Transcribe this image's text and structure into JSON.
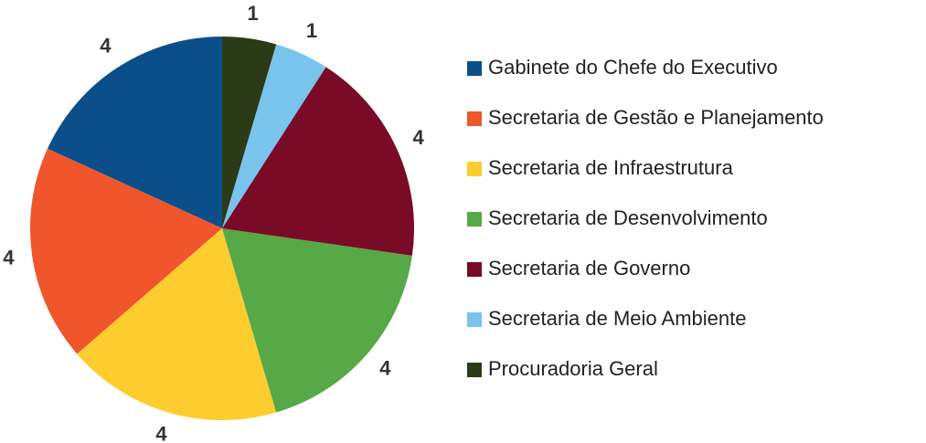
{
  "chart_data": {
    "type": "pie",
    "categories": [
      "Gabinete do Chefe do Executivo",
      "Secretaria de Gestão e Planejamento",
      "Secretaria de Infraestrutura",
      "Secretaria de Desenvolvimento",
      "Secretaria de Governo",
      "Secretaria de Meio Ambiente",
      "Procuradoria Geral"
    ],
    "values": [
      4,
      4,
      4,
      4,
      4,
      1,
      1
    ],
    "colors": [
      "#0b4f8a",
      "#f0552c",
      "#fdcd2f",
      "#57a846",
      "#7a0b27",
      "#78c4ec",
      "#2b3a17"
    ],
    "legend": "right"
  }
}
